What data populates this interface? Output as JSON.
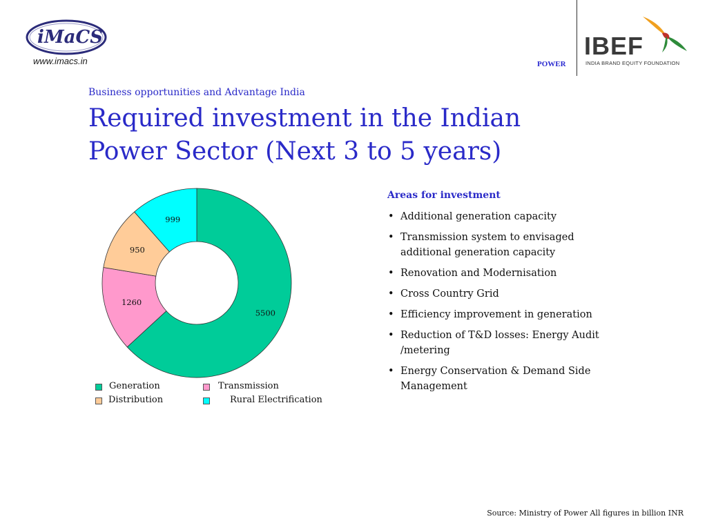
{
  "header": {
    "imacs_logo_text": "iMaCS",
    "imacs_url": "www.imacs.in",
    "section_label": "POWER",
    "ibef_wordmark": "IBEF",
    "ibef_tagline": "INDIA BRAND EQUITY FOUNDATION"
  },
  "page": {
    "subtitle": "Business opportunities and Advantage India",
    "title": "Required investment  in  the Indian Power Sector (Next 3 to 5 years)"
  },
  "colors": {
    "generation": "#00cc99",
    "transmission": "#ff99cc",
    "distribution": "#ffcc99",
    "rural_electrification": "#00ffff",
    "title_blue": "#2a2ac8"
  },
  "chart_data": {
    "type": "pie",
    "donut": true,
    "categories": [
      "Generation",
      "Transmission",
      "Distribution",
      "Rural Electrification"
    ],
    "values": [
      5500,
      1260,
      950,
      999
    ],
    "data_labels": [
      "5500",
      "1260",
      "950",
      "999"
    ],
    "legend_position": "bottom"
  },
  "areas": {
    "heading": "Areas for investment",
    "items": [
      "Additional generation capacity",
      "Transmission system to envisaged additional generation capacity",
      "Renovation and Modernisation",
      "Cross Country Grid",
      "Efficiency improvement in generation",
      "Reduction of T&D losses: Energy Audit /metering",
      "Energy Conservation & Demand Side Management"
    ]
  },
  "footer": {
    "source": "Source: Ministry of Power All figures in billion INR"
  }
}
